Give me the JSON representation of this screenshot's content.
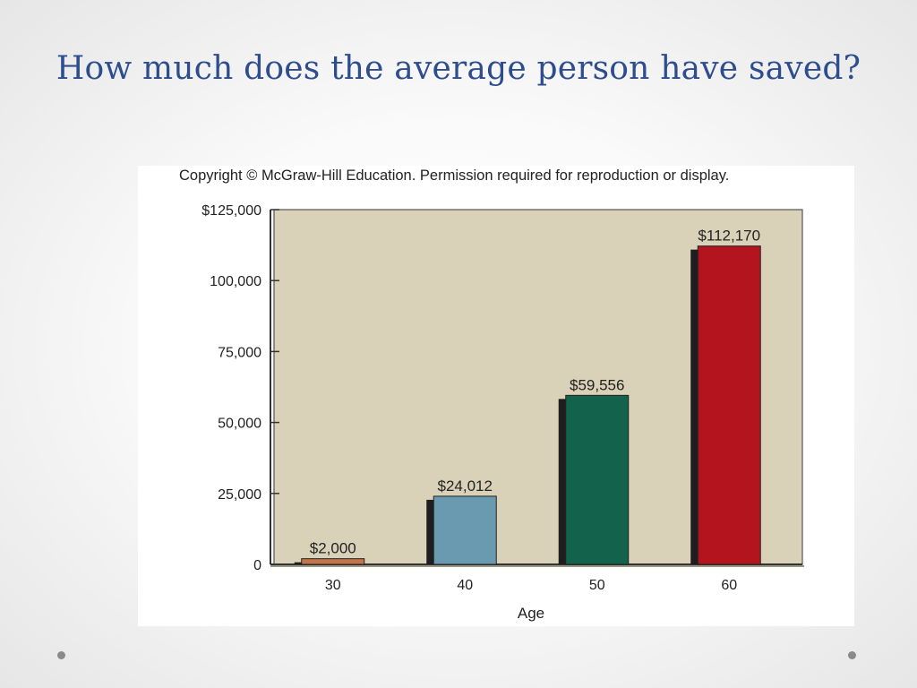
{
  "slide": {
    "title": "How much does the average person have saved?"
  },
  "chart_data": {
    "type": "bar",
    "copyright": "Copyright © McGraw-Hill Education. Permission required for reproduction or display.",
    "categories": [
      "30",
      "40",
      "50",
      "60"
    ],
    "values": [
      2000,
      24012,
      59556,
      112170
    ],
    "data_labels": [
      "$2,000",
      "$24,012",
      "$59,556",
      "$112,170"
    ],
    "xlabel": "Age",
    "ylabel": "",
    "ylim": [
      0,
      125000
    ],
    "yticks": [
      0,
      25000,
      50000,
      75000,
      100000,
      125000
    ],
    "ytick_labels": [
      "0",
      "25,000",
      "50,000",
      "75,000",
      "100,000",
      "$125,000"
    ],
    "grid": false,
    "colors": {
      "plot_background": "#d9d1b8",
      "bars": [
        "#c2744a",
        "#6a9aaf",
        "#13634c",
        "#b3141e"
      ],
      "bar_shadow": "#1e1e1e",
      "axis": "#333333"
    }
  }
}
